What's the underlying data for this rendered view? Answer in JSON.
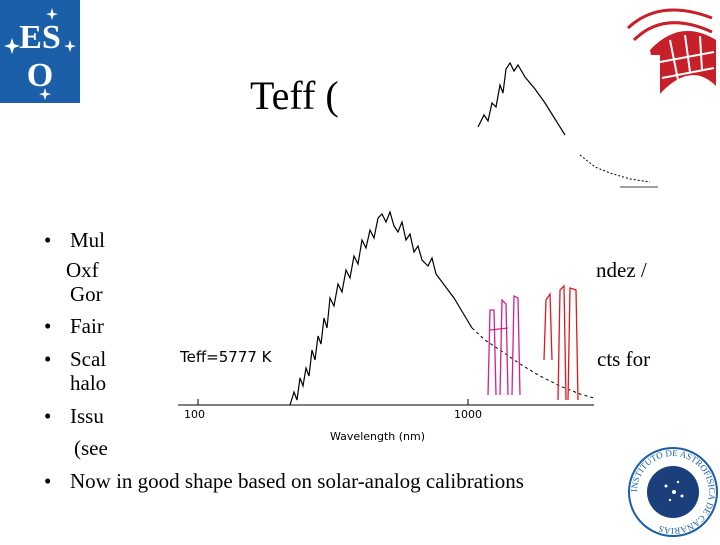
{
  "title": "Teff (",
  "bullets": [
    {
      "lines": [
        "Mul"
      ]
    },
    {
      "lines": [
        "Oxf",
        "Gor"
      ],
      "continuation": true
    },
    {
      "lines": [
        "Fair"
      ]
    },
    {
      "lines": [
        "Scal",
        "halo"
      ]
    },
    {
      "lines": [
        "Issu",
        "(see"
      ]
    },
    {
      "lines": [
        "Now in good shape based on solar-analog calibrations"
      ]
    }
  ],
  "right_fragments": [
    "ndez /",
    "cts for"
  ],
  "figure": {
    "annotation": "Teff=5777 K",
    "tick_labels": [
      "100",
      "1000"
    ],
    "xlabel": "Wavelength (nm)"
  },
  "logos": {
    "eso_text": "ESO",
    "round_logo_text": "INSTITUTO DE ASTROFISICA DE CANARIAS"
  },
  "colors": {
    "eso_blue": "#1a5fa8",
    "iac_red": "#c8202a",
    "magenta": "#d6208a",
    "red": "#e0181e"
  }
}
